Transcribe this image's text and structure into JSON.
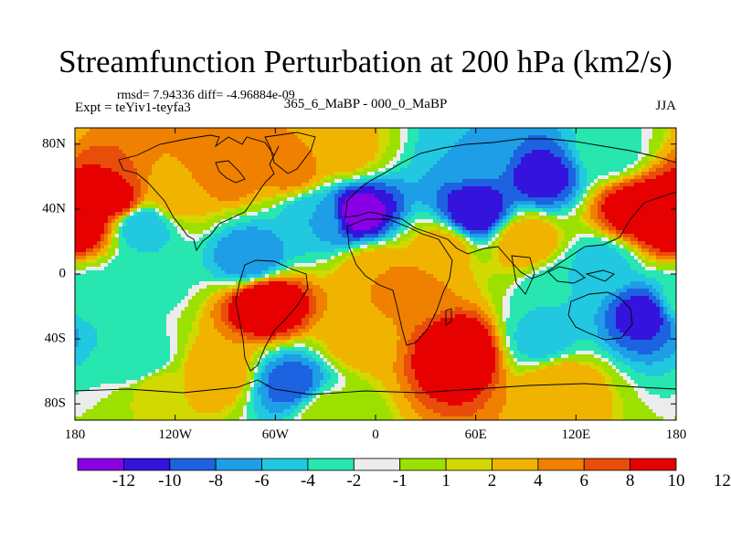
{
  "figure": {
    "title": "Streamfunction Perturbation at 200 hPa (km2/s)",
    "rmsd_line": "rmsd= 7.94336 diff= -4.96884e-09",
    "experiment": "Expt = teYiv1-teyfa3",
    "comparison": "365_6_MaBP - 000_0_MaBP",
    "season": "JJA"
  },
  "map": {
    "projection": "cylindrical equidistant (global)",
    "lon_range": [
      -180,
      180
    ],
    "lat_range": [
      -90,
      90
    ],
    "lat_ticks": [
      {
        "value": 80,
        "label": "80N"
      },
      {
        "value": 40,
        "label": "40N"
      },
      {
        "value": 0,
        "label": "0"
      },
      {
        "value": -40,
        "label": "40S"
      },
      {
        "value": -80,
        "label": "80S"
      }
    ],
    "lon_ticks": [
      {
        "value": -180,
        "label": "180"
      },
      {
        "value": -120,
        "label": "120W"
      },
      {
        "value": -60,
        "label": "60W"
      },
      {
        "value": 0,
        "label": "0"
      },
      {
        "value": 60,
        "label": "60E"
      },
      {
        "value": 120,
        "label": "120E"
      },
      {
        "value": 180,
        "label": "180"
      }
    ],
    "field_features": [
      {
        "lon": -180,
        "lat": 35,
        "value": 13
      },
      {
        "lon": 180,
        "lat": 35,
        "value": 12
      },
      {
        "lon": -155,
        "lat": 45,
        "value": 9
      },
      {
        "lon": 155,
        "lat": 40,
        "value": 10
      },
      {
        "lon": -90,
        "lat": 65,
        "value": 6
      },
      {
        "lon": -50,
        "lat": 65,
        "value": 5
      },
      {
        "lon": -20,
        "lat": 75,
        "value": 3
      },
      {
        "lon": -35,
        "lat": 35,
        "value": -6
      },
      {
        "lon": -75,
        "lat": 10,
        "value": -8
      },
      {
        "lon": -10,
        "lat": 38,
        "value": -13
      },
      {
        "lon": 60,
        "lat": 38,
        "value": -12
      },
      {
        "lon": 100,
        "lat": 60,
        "value": -11
      },
      {
        "lon": 140,
        "lat": 75,
        "value": -3
      },
      {
        "lon": 60,
        "lat": 75,
        "value": -6
      },
      {
        "lon": -120,
        "lat": 48,
        "value": 3
      },
      {
        "lon": -140,
        "lat": 30,
        "value": -6
      },
      {
        "lon": -140,
        "lat": 0,
        "value": -4
      },
      {
        "lon": -175,
        "lat": -15,
        "value": -3
      },
      {
        "lon": -65,
        "lat": -18,
        "value": 12
      },
      {
        "lon": -95,
        "lat": -60,
        "value": 4
      },
      {
        "lon": -50,
        "lat": -68,
        "value": -9
      },
      {
        "lon": -140,
        "lat": -55,
        "value": -4
      },
      {
        "lon": -130,
        "lat": -70,
        "value": 2
      },
      {
        "lon": -10,
        "lat": -40,
        "value": 3
      },
      {
        "lon": 0,
        "lat": 0,
        "value": 4
      },
      {
        "lon": 20,
        "lat": -10,
        "value": 5
      },
      {
        "lon": 50,
        "lat": -48,
        "value": 12
      },
      {
        "lon": 90,
        "lat": 20,
        "value": 4
      },
      {
        "lon": 40,
        "lat": 15,
        "value": 3
      },
      {
        "lon": 110,
        "lat": -10,
        "value": -4
      },
      {
        "lon": 135,
        "lat": 5,
        "value": -5
      },
      {
        "lon": 160,
        "lat": -25,
        "value": -11
      },
      {
        "lon": 100,
        "lat": -40,
        "value": -5
      },
      {
        "lon": 110,
        "lat": -68,
        "value": 4
      },
      {
        "lon": -30,
        "lat": -85,
        "value": 0
      }
    ]
  },
  "colorbar": {
    "colors": [
      "#8a00e6",
      "#3414dc",
      "#1d62e1",
      "#1e9ee6",
      "#21c8e0",
      "#27e6b0",
      "#ececec",
      "#9ce000",
      "#d1d900",
      "#f0b400",
      "#f08000",
      "#e84d0a",
      "#e60000"
    ],
    "labels": [
      "-12",
      "-10",
      "-8",
      "-6",
      "-4",
      "-2",
      "-1",
      "1",
      "2",
      "4",
      "6",
      "8",
      "10",
      "12"
    ],
    "thresholds": [
      -12,
      -10,
      -8,
      -6,
      -4,
      -2,
      -1,
      1,
      2,
      4,
      6,
      8,
      10,
      12
    ]
  }
}
